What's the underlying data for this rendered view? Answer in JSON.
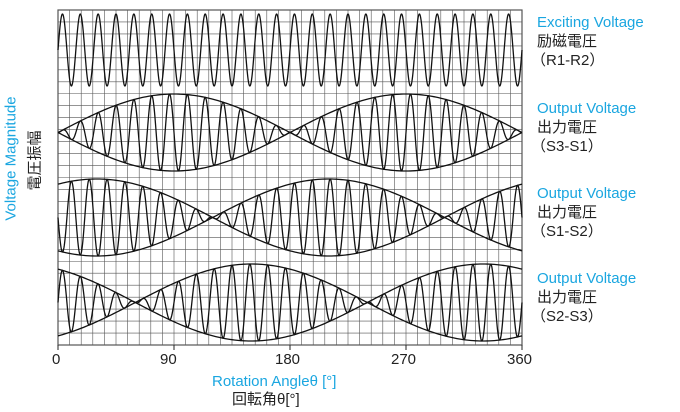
{
  "chart_data": {
    "type": "line",
    "xlabel": "Rotation Angleθ [°]",
    "xlabel_ja": "回転角θ[°]",
    "ylabel": "Voltage Magnitude",
    "ylabel_ja": "電圧振幅",
    "xlim": [
      0,
      360
    ],
    "x_ticks": [
      "0",
      "90",
      "180",
      "270",
      "360"
    ],
    "grid": true,
    "carrier_cycles": 26,
    "series": [
      {
        "name": "Exciting Voltage",
        "name_ja": "励磁電圧",
        "terminals": "（R1-R2）",
        "envelope": "constant",
        "phase_deg": 0
      },
      {
        "name": "Output Voltage",
        "name_ja": "出力電圧",
        "terminals": "（S3-S1）",
        "envelope": "sin",
        "phase_deg": 0
      },
      {
        "name": "Output Voltage",
        "name_ja": "出力電圧",
        "terminals": "（S1-S2）",
        "envelope": "sin",
        "phase_deg": 120
      },
      {
        "name": "Output Voltage",
        "name_ja": "出力電圧",
        "terminals": "（S2-S3）",
        "envelope": "sin",
        "phase_deg": 240
      }
    ]
  },
  "colors": {
    "accent": "#1aa6e0",
    "line": "#111111",
    "grid": "#555555"
  }
}
